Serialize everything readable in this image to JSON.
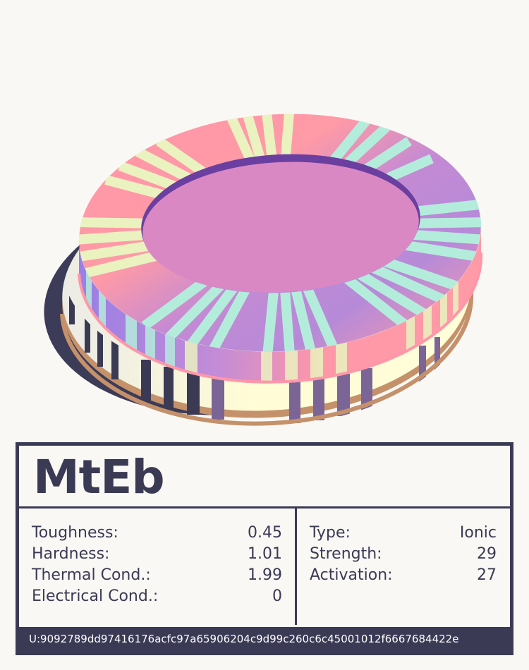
{
  "card": {
    "name": "MtEb",
    "properties": [
      {
        "label": "Toughness:",
        "value": "0.45"
      },
      {
        "label": "Hardness:",
        "value": "1.01"
      },
      {
        "label": "Thermal Cond.:",
        "value": "1.99"
      },
      {
        "label": "Electrical Cond.:",
        "value": "0"
      }
    ],
    "bond": [
      {
        "label": "Type:",
        "value": "Ionic"
      },
      {
        "label": "Strength:",
        "value": "29"
      },
      {
        "label": "Activation:",
        "value": "27"
      }
    ],
    "uid": "U:9092789dd97416176acfc97a65906204c9d99c260c6c45001012f6667684422e"
  },
  "colors": {
    "ink": "#3b3a55",
    "background": "#faf8f4",
    "top_disc_pink": "#ff95a8",
    "top_disc_violet": "#b88ad8",
    "top_disc_center": "#da88c4",
    "top_disc_rim": "#6a3fa0",
    "stripe_mint": "#b4ecdc",
    "stripe_cream": "#eaf2c0",
    "lower_disc_cream": "#fffed8",
    "lower_disc_rim": "#c4916a",
    "shadow": "#3c3b58"
  }
}
